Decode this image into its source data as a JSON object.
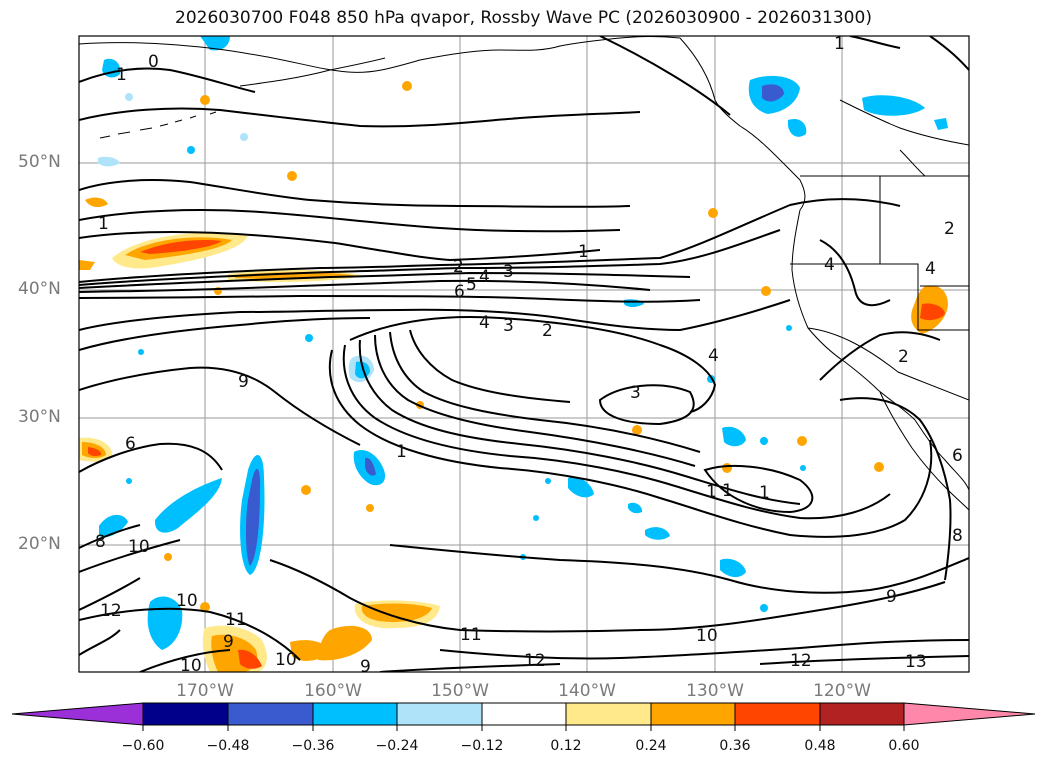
{
  "title": "2026030700 F048 850 hPa qvapor, Rossby Wave PC (2026030900 - 2026031300)",
  "lat_labels": [
    "50°N",
    "40°N",
    "30°N",
    "20°N"
  ],
  "lon_labels": [
    "170°W",
    "160°W",
    "150°W",
    "140°W",
    "130°W",
    "120°W"
  ],
  "colorbar": {
    "ticks": [
      "−0.60",
      "−0.48",
      "−0.36",
      "−0.24",
      "−0.12",
      "0.12",
      "0.24",
      "0.36",
      "0.48",
      "0.60"
    ],
    "colors": [
      "#9b30d9",
      "#00008b",
      "#3a5bd0",
      "#00bfff",
      "#afe3fa",
      "#ffffff",
      "#ffe98a",
      "#ffa500",
      "#ff4500",
      "#b22222",
      "#ff88aa"
    ]
  },
  "contour_labels": [
    "0",
    "1",
    "1",
    "1",
    "2",
    "4",
    "3",
    "1",
    "6",
    "5",
    "4",
    "3",
    "2",
    "4",
    "2",
    "3",
    "9",
    "6",
    "8",
    "10",
    "12",
    "10",
    "11",
    "9",
    "10",
    "10",
    "9",
    "11",
    "12",
    "10",
    "12",
    "13",
    "9",
    "1",
    "1",
    "1",
    "6",
    "8",
    "2",
    "4",
    "4",
    "1"
  ]
}
